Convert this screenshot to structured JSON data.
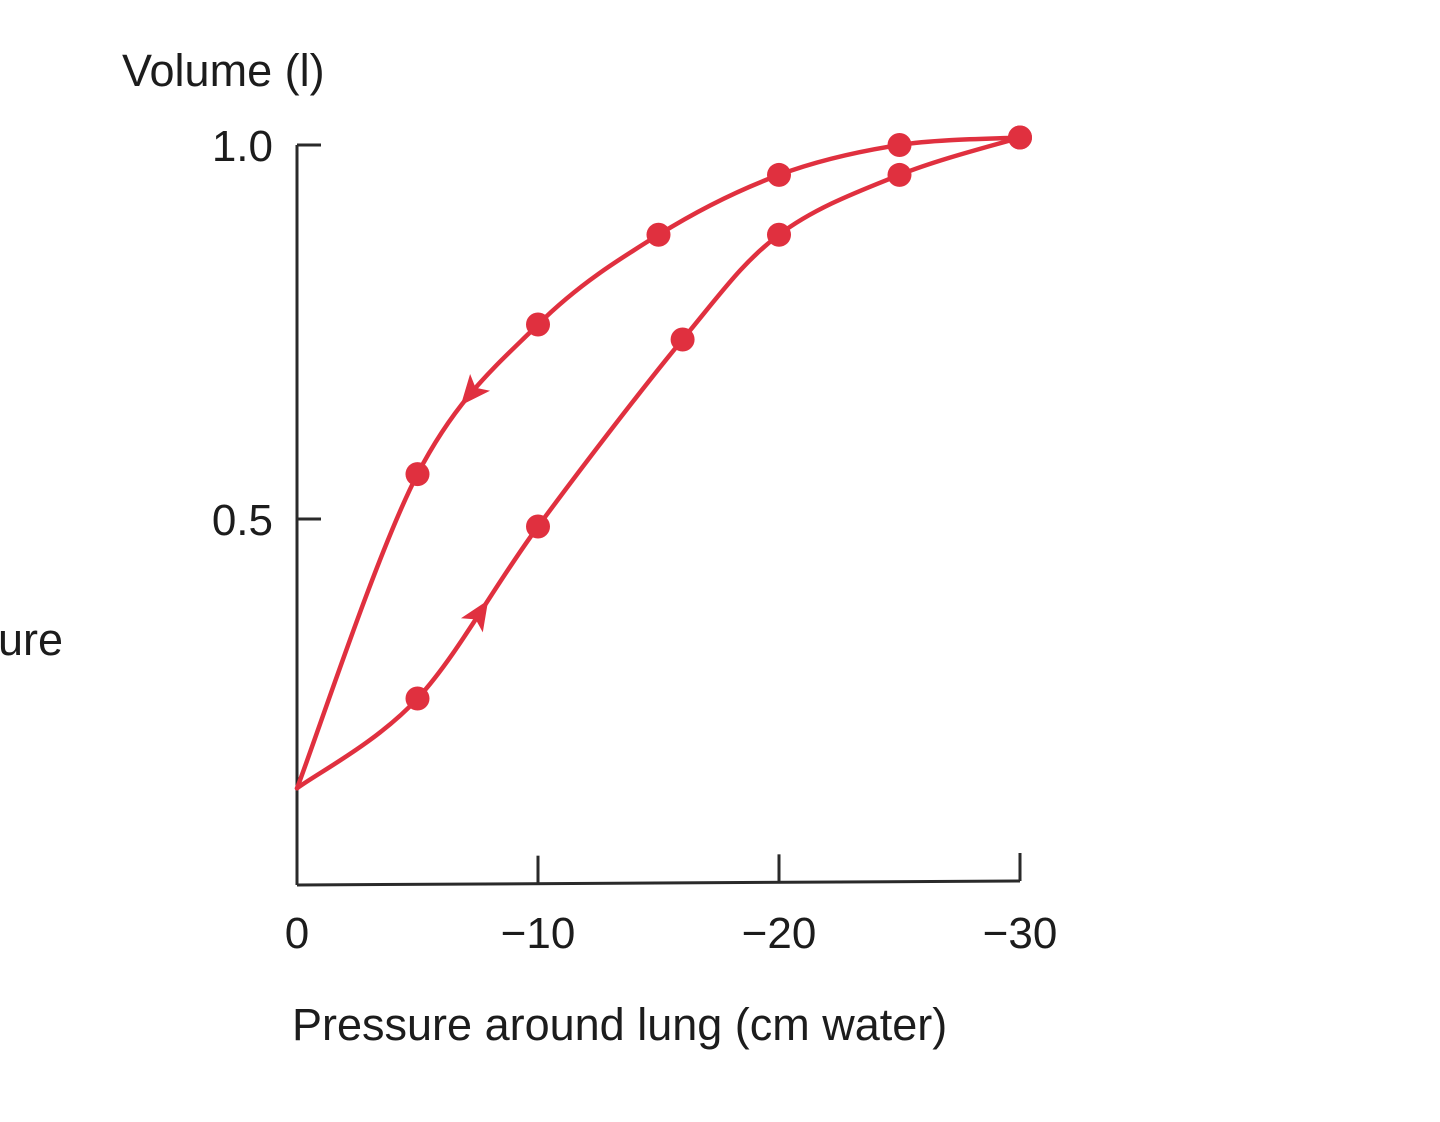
{
  "fragment": {
    "left_margin_text": "ure"
  },
  "colors": {
    "series": "#e0303f",
    "axis": "#2a2a2a",
    "text": "#1c1c1c"
  },
  "chart_data": {
    "type": "line",
    "title": "",
    "xlabel": "Pressure around lung (cm water)",
    "ylabel": "Volume (l)",
    "x_direction": "decreasing (more negative to the right)",
    "xlim": [
      0,
      -30
    ],
    "ylim": [
      0.0,
      1.0
    ],
    "x_ticks": [
      {
        "value": 0,
        "label": "0"
      },
      {
        "value": -10,
        "label": "−10"
      },
      {
        "value": -20,
        "label": "−20"
      },
      {
        "value": -30,
        "label": "−30"
      }
    ],
    "y_ticks": [
      {
        "value": 0.5,
        "label": "0.5"
      },
      {
        "value": 1.0,
        "label": "1.0"
      }
    ],
    "grid": false,
    "legend": "none",
    "series": [
      {
        "direction": "deflation (arrow points toward origin)",
        "x": [
          0,
          -5,
          -10,
          -15,
          -20,
          -25,
          -30
        ],
        "y": [
          0.14,
          0.56,
          0.76,
          0.88,
          0.96,
          1.0,
          1.01
        ]
      },
      {
        "direction": "inflation (arrow points away from origin)",
        "x": [
          0,
          -5,
          -10,
          -16,
          -20,
          -25,
          -30
        ],
        "y": [
          0.14,
          0.26,
          0.49,
          0.74,
          0.88,
          0.96,
          1.01
        ]
      }
    ]
  }
}
